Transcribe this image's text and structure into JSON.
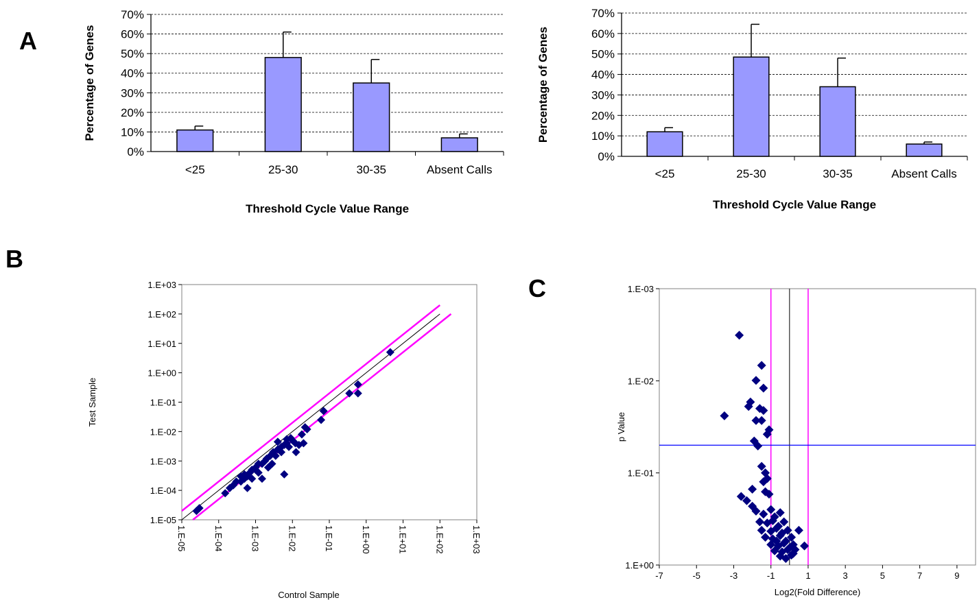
{
  "panel_labels": {
    "a": "A",
    "b": "B",
    "c": "C"
  },
  "colors": {
    "bar_fill": "#9999ff",
    "marker": "#000080",
    "magenta": "#ff00ff",
    "blue_line": "#0000ff"
  },
  "chart_data": [
    {
      "id": "A-left",
      "type": "bar",
      "title": "",
      "xlabel": "Threshold Cycle Value Range",
      "ylabel": "Percentage of Genes",
      "categories": [
        "<25",
        "25-30",
        "30-35",
        "Absent Calls"
      ],
      "values": [
        11,
        48,
        35,
        7
      ],
      "error_plus": [
        2,
        13,
        12,
        2
      ],
      "ylim": [
        0,
        70
      ],
      "yticks": [
        "0%",
        "10%",
        "20%",
        "30%",
        "40%",
        "50%",
        "60%",
        "70%"
      ],
      "grid": "horizontal-dashed",
      "legend": "none"
    },
    {
      "id": "A-right",
      "type": "bar",
      "title": "",
      "xlabel": "Threshold Cycle Value Range",
      "ylabel": "Percentage of Genes",
      "categories": [
        "<25",
        "25-30",
        "30-35",
        "Absent Calls"
      ],
      "values": [
        12,
        48.5,
        34,
        6
      ],
      "error_plus": [
        2,
        16,
        14,
        1
      ],
      "ylim": [
        0,
        70
      ],
      "yticks": [
        "0%",
        "10%",
        "20%",
        "30%",
        "40%",
        "50%",
        "60%",
        "70%"
      ],
      "grid": "horizontal-dashed",
      "legend": "none"
    },
    {
      "id": "B",
      "type": "scatter",
      "title": "",
      "xlabel": "Control Sample",
      "ylabel": "Test Sample",
      "xscale": "log",
      "yscale": "log",
      "xlim": [
        1e-05,
        1000
      ],
      "ylim": [
        1e-05,
        1000
      ],
      "xticks": [
        "1.E-05",
        "1.E-04",
        "1.E-03",
        "1.E-02",
        "1.E-01",
        "1.E+00",
        "1.E+01",
        "1.E+02",
        "1.E+03"
      ],
      "yticks": [
        "1.E-05",
        "1.E-04",
        "1.E-03",
        "1.E-02",
        "1.E-01",
        "1.E+00",
        "1.E+01",
        "1.E+02",
        "1.E+03"
      ],
      "reference_lines": [
        {
          "kind": "y=x",
          "color": "#000000"
        },
        {
          "kind": "y=2x",
          "color": "#ff00ff"
        },
        {
          "kind": "y=x/2",
          "color": "#ff00ff"
        }
      ],
      "points": [
        [
          2.5e-05,
          2e-05
        ],
        [
          3e-05,
          2.5e-05
        ],
        [
          0.00015,
          8e-05
        ],
        [
          0.00025,
          0.00015
        ],
        [
          0.0002,
          0.00012
        ],
        [
          0.0003,
          0.0002
        ],
        [
          0.0004,
          0.0002
        ],
        [
          0.0004,
          0.0003
        ],
        [
          0.0005,
          0.00025
        ],
        [
          0.0005,
          0.00035
        ],
        [
          0.0006,
          0.0003
        ],
        [
          0.0006,
          0.00012
        ],
        [
          0.0007,
          0.0004
        ],
        [
          0.0008,
          0.0005
        ],
        [
          0.0008,
          0.00025
        ],
        [
          0.001,
          0.0005
        ],
        [
          0.001,
          0.0006
        ],
        [
          0.0012,
          0.0008
        ],
        [
          0.0012,
          0.0004
        ],
        [
          0.0015,
          0.0008
        ],
        [
          0.0015,
          0.00025
        ],
        [
          0.0018,
          0.001
        ],
        [
          0.002,
          0.0012
        ],
        [
          0.0022,
          0.0006
        ],
        [
          0.0025,
          0.0015
        ],
        [
          0.003,
          0.002
        ],
        [
          0.0028,
          0.0008
        ],
        [
          0.0035,
          0.0015
        ],
        [
          0.004,
          0.0025
        ],
        [
          0.004,
          0.0045
        ],
        [
          0.005,
          0.002
        ],
        [
          0.005,
          0.003
        ],
        [
          0.006,
          0.0035
        ],
        [
          0.006,
          0.00035
        ],
        [
          0.007,
          0.004
        ],
        [
          0.007,
          0.0055
        ],
        [
          0.008,
          0.003
        ],
        [
          0.009,
          0.006
        ],
        [
          0.01,
          0.005
        ],
        [
          0.012,
          0.004
        ],
        [
          0.0125,
          0.002
        ],
        [
          0.015,
          0.0035
        ],
        [
          0.018,
          0.008
        ],
        [
          0.02,
          0.004
        ],
        [
          0.025,
          0.012
        ],
        [
          0.022,
          0.014
        ],
        [
          0.06,
          0.025
        ],
        [
          0.07,
          0.05
        ],
        [
          0.35,
          0.2
        ],
        [
          0.6,
          0.2
        ],
        [
          0.6,
          0.4
        ],
        [
          4.5,
          5.0
        ]
      ],
      "legend": "none"
    },
    {
      "id": "C",
      "type": "scatter",
      "title": "",
      "xlabel": "Log2(Fold Difference)",
      "ylabel": "p Value",
      "xlim": [
        -7,
        10
      ],
      "xticks": [
        -7,
        -5,
        -3,
        -1,
        1,
        3,
        5,
        7,
        9
      ],
      "yscale": "log-reversed",
      "ylim": [
        1,
        0.001
      ],
      "yticks": [
        "1.E-03",
        "1.E-02",
        "1.E-01",
        "1.E+00"
      ],
      "reference_lines": [
        {
          "axis": "x",
          "value": -1,
          "color": "#ff00ff"
        },
        {
          "axis": "x",
          "value": 1,
          "color": "#ff00ff"
        },
        {
          "axis": "x",
          "value": 0,
          "color": "#000000"
        },
        {
          "axis": "y",
          "value": 0.05,
          "color": "#0000ff"
        }
      ],
      "points": [
        [
          -2.7,
          0.0032
        ],
        [
          -1.5,
          0.0068
        ],
        [
          -1.8,
          0.0099
        ],
        [
          -1.4,
          0.012
        ],
        [
          -2.1,
          0.017
        ],
        [
          -2.2,
          0.019
        ],
        [
          -1.6,
          0.02
        ],
        [
          -1.4,
          0.021
        ],
        [
          -1.8,
          0.027
        ],
        [
          -1.5,
          0.027
        ],
        [
          -3.5,
          0.024
        ],
        [
          -1.1,
          0.034
        ],
        [
          -1.2,
          0.038
        ],
        [
          -1.9,
          0.045
        ],
        [
          -1.7,
          0.051
        ],
        [
          -1.5,
          0.085
        ],
        [
          -1.3,
          0.1
        ],
        [
          -1.2,
          0.115
        ],
        [
          -1.4,
          0.125
        ],
        [
          -2.0,
          0.15
        ],
        [
          -1.3,
          0.16
        ],
        [
          -2.6,
          0.18
        ],
        [
          -2.3,
          0.2
        ],
        [
          -1.1,
          0.17
        ],
        [
          -2.0,
          0.23
        ],
        [
          -1.8,
          0.26
        ],
        [
          -1.4,
          0.28
        ],
        [
          -1.0,
          0.25
        ],
        [
          -0.8,
          0.3
        ],
        [
          -0.5,
          0.27
        ],
        [
          -1.6,
          0.34
        ],
        [
          -1.2,
          0.35
        ],
        [
          -0.9,
          0.33
        ],
        [
          -0.6,
          0.38
        ],
        [
          -0.3,
          0.34
        ],
        [
          -1.5,
          0.42
        ],
        [
          -1.0,
          0.43
        ],
        [
          -0.7,
          0.4
        ],
        [
          -0.4,
          0.45
        ],
        [
          -0.1,
          0.42
        ],
        [
          -1.3,
          0.5
        ],
        [
          -0.9,
          0.52
        ],
        [
          -0.5,
          0.48
        ],
        [
          -0.2,
          0.55
        ],
        [
          0.1,
          0.5
        ],
        [
          -1.0,
          0.6
        ],
        [
          -0.6,
          0.62
        ],
        [
          -0.3,
          0.58
        ],
        [
          0.0,
          0.65
        ],
        [
          0.2,
          0.6
        ],
        [
          -0.8,
          0.7
        ],
        [
          -0.4,
          0.72
        ],
        [
          -0.1,
          0.68
        ],
        [
          0.2,
          0.75
        ],
        [
          -0.5,
          0.8
        ],
        [
          -0.2,
          0.85
        ],
        [
          0.1,
          0.78
        ],
        [
          -0.7,
          0.55
        ],
        [
          0.3,
          0.68
        ],
        [
          0.5,
          0.42
        ],
        [
          0.8,
          0.62
        ]
      ],
      "legend": "none"
    }
  ]
}
